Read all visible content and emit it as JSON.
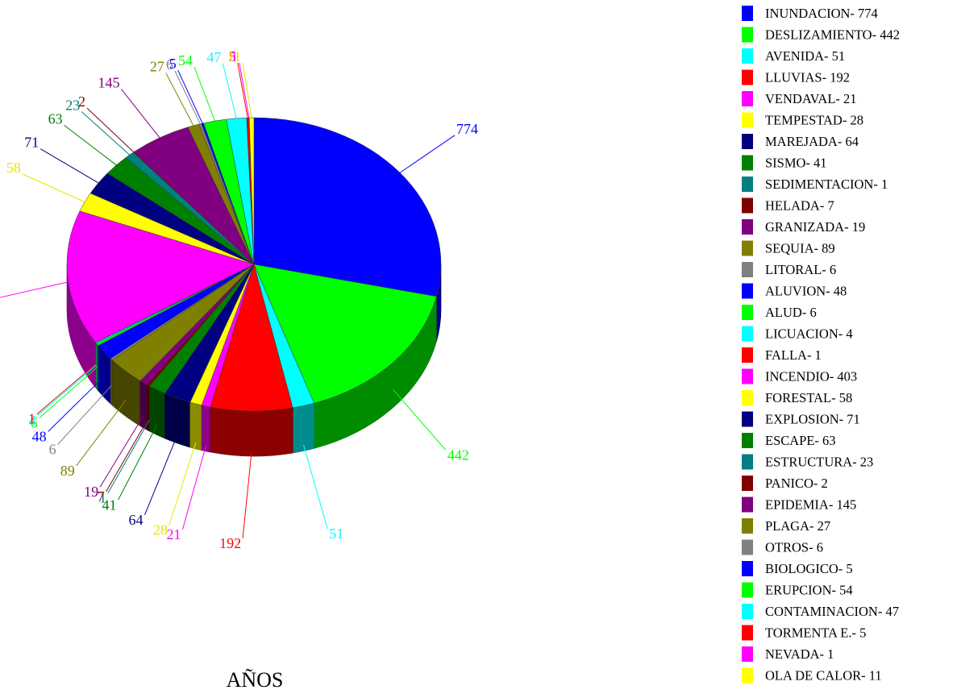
{
  "chart_data": {
    "type": "pie",
    "title": "AÑOS",
    "legend_position": "right",
    "slices": [
      {
        "name": "INUNDACION",
        "value": 774,
        "color": "#0000FF"
      },
      {
        "name": "DESLIZAMIENTO",
        "value": 442,
        "color": "#00FF00"
      },
      {
        "name": "AVENIDA",
        "value": 51,
        "color": "#00FFFF"
      },
      {
        "name": "LLUVIAS",
        "value": 192,
        "color": "#FF0000"
      },
      {
        "name": "VENDAVAL",
        "value": 21,
        "color": "#FF00FF"
      },
      {
        "name": "TEMPESTAD",
        "value": 28,
        "color": "#FFFF00"
      },
      {
        "name": "MAREJADA",
        "value": 64,
        "color": "#000080"
      },
      {
        "name": "SISMO",
        "value": 41,
        "color": "#008000"
      },
      {
        "name": "SEDIMENTACION",
        "value": 1,
        "color": "#008080"
      },
      {
        "name": "HELADA",
        "value": 7,
        "color": "#800000"
      },
      {
        "name": "GRANIZADA",
        "value": 19,
        "color": "#800080"
      },
      {
        "name": "SEQUIA",
        "value": 89,
        "color": "#808000"
      },
      {
        "name": "LITORAL",
        "value": 6,
        "color": "#808080"
      },
      {
        "name": "ALUVION",
        "value": 48,
        "color": "#0000FF"
      },
      {
        "name": "ALUD",
        "value": 6,
        "color": "#00FF00"
      },
      {
        "name": "LICUACION",
        "value": 4,
        "color": "#00FFFF"
      },
      {
        "name": "FALLA",
        "value": 1,
        "color": "#FF0000"
      },
      {
        "name": "INCENDIO",
        "value": 403,
        "color": "#FF00FF"
      },
      {
        "name": "FORESTAL",
        "value": 58,
        "color": "#FFFF00"
      },
      {
        "name": "EXPLOSION",
        "value": 71,
        "color": "#000080"
      },
      {
        "name": "ESCAPE",
        "value": 63,
        "color": "#008000"
      },
      {
        "name": "ESTRUCTURA",
        "value": 23,
        "color": "#008080"
      },
      {
        "name": "PANICO",
        "value": 2,
        "color": "#800000"
      },
      {
        "name": "EPIDEMIA",
        "value": 145,
        "color": "#800080"
      },
      {
        "name": "PLAGA",
        "value": 27,
        "color": "#808000"
      },
      {
        "name": "OTROS",
        "value": 6,
        "color": "#808080"
      },
      {
        "name": "BIOLOGICO",
        "value": 5,
        "color": "#0000FF"
      },
      {
        "name": "ERUPCION",
        "value": 54,
        "color": "#00FF00"
      },
      {
        "name": "CONTAMINACION",
        "value": 47,
        "color": "#00FFFF"
      },
      {
        "name": "TORMENTA E.",
        "value": 5,
        "color": "#FF0000"
      },
      {
        "name": "NEVADA",
        "value": 1,
        "color": "#FF00FF"
      },
      {
        "name": "OLA DE CALOR",
        "value": 11,
        "color": "#FFFF00"
      }
    ],
    "legend_entries": [
      "INUNDACION- 774",
      "DESLIZAMIENTO- 442",
      "AVENIDA- 51",
      "LLUVIAS- 192",
      "VENDAVAL- 21",
      "TEMPESTAD- 28",
      "MAREJADA- 64",
      "SISMO- 41",
      "SEDIMENTACION- 1",
      "HELADA- 7",
      "GRANIZADA- 19",
      "SEQUIA- 89",
      "LITORAL- 6",
      "ALUVION- 48",
      "ALUD- 6",
      "LICUACION- 4",
      "FALLA- 1",
      "INCENDIO- 403",
      "FORESTAL- 58",
      "EXPLOSION- 71",
      "ESCAPE- 63",
      "ESTRUCTURA- 23",
      "PANICO- 2",
      "EPIDEMIA- 145",
      "PLAGA- 27",
      "OTROS- 6",
      "BIOLOGICO- 5",
      "ERUPCION- 54",
      "CONTAMINACION- 47",
      "TORMENTA E.- 5",
      "NEVADA- 1",
      "OLA DE CALOR- 11"
    ]
  }
}
